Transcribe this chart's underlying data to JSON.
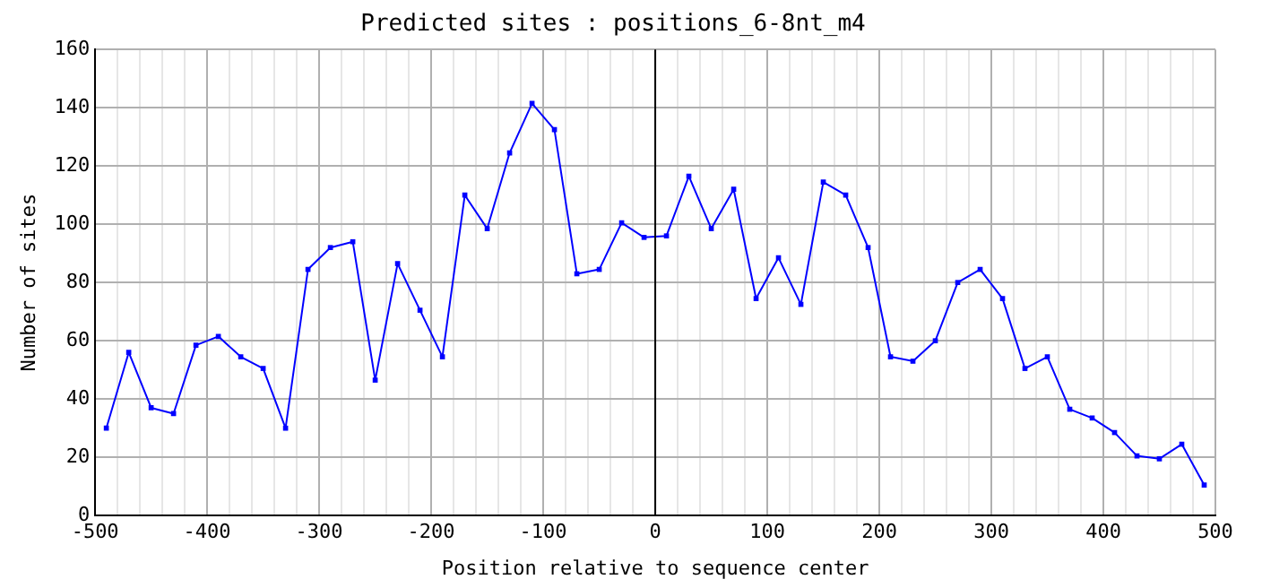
{
  "chart_data": {
    "type": "line",
    "title": "Predicted sites : positions_6-8nt_m4",
    "xlabel": "Position relative to sequence center",
    "ylabel": "Number of sites",
    "x": [
      -490,
      -470,
      -450,
      -430,
      -410,
      -390,
      -370,
      -350,
      -330,
      -310,
      -290,
      -270,
      -250,
      -230,
      -210,
      -190,
      -170,
      -150,
      -130,
      -110,
      -90,
      -70,
      -50,
      -30,
      -10,
      10,
      30,
      50,
      70,
      90,
      110,
      130,
      150,
      170,
      190,
      210,
      230,
      250,
      270,
      290,
      310,
      330,
      350,
      370,
      390,
      410,
      430,
      450,
      470,
      490
    ],
    "series": [
      {
        "color": "#0000ff",
        "values": [
          30,
          56,
          37,
          35,
          58.5,
          61.5,
          54.5,
          50.5,
          30,
          84.5,
          92,
          94,
          46.5,
          86.5,
          70.5,
          54.5,
          110,
          98.5,
          124.5,
          141.5,
          132.5,
          83,
          84.5,
          100.5,
          95.5,
          96,
          116.5,
          98.5,
          112,
          74.5,
          88.5,
          72.5,
          114.5,
          110,
          92,
          54.5,
          53,
          60,
          80,
          84.5,
          74.5,
          50.5,
          54.5,
          36.5,
          33.5,
          28.5,
          20.5,
          19.5,
          24.5,
          10.5
        ]
      }
    ],
    "xlim": [
      -500,
      500
    ],
    "xticks": [
      -500,
      {
        "value": -480,
        "label": null
      },
      {
        "value": -460,
        "label": null
      },
      {
        "value": -440,
        "label": null
      },
      {
        "value": -420,
        "label": null
      },
      -400,
      {
        "value": -380,
        "label": null
      },
      {
        "value": -360,
        "label": null
      },
      {
        "value": -340,
        "label": null
      },
      {
        "value": -320,
        "label": null
      },
      -300,
      {
        "value": -280,
        "label": null
      },
      {
        "value": -260,
        "label": null
      },
      {
        "value": -240,
        "label": null
      },
      {
        "value": -220,
        "label": null
      },
      -200,
      {
        "value": -180,
        "label": null
      },
      {
        "value": -160,
        "label": null
      },
      {
        "value": -140,
        "label": null
      },
      {
        "value": -120,
        "label": null
      },
      -100,
      {
        "value": -80,
        "label": null
      },
      {
        "value": -60,
        "label": null
      },
      {
        "value": -40,
        "label": null
      },
      {
        "value": -20,
        "label": null
      },
      0,
      {
        "value": 20,
        "label": null
      },
      {
        "value": 40,
        "label": null
      },
      {
        "value": 60,
        "label": null
      },
      {
        "value": 80,
        "label": null
      },
      100,
      {
        "value": 120,
        "label": null
      },
      {
        "value": 140,
        "label": null
      },
      {
        "value": 160,
        "label": null
      },
      {
        "value": 180,
        "label": null
      },
      200,
      {
        "value": 220,
        "label": null
      },
      {
        "value": 240,
        "label": null
      },
      {
        "value": 260,
        "label": null
      },
      {
        "value": 280,
        "label": null
      },
      300,
      {
        "value": 320,
        "label": null
      },
      {
        "value": 340,
        "label": null
      },
      {
        "value": 360,
        "label": null
      },
      {
        "value": 380,
        "label": null
      },
      400,
      {
        "value": 420,
        "label": null
      },
      {
        "value": 440,
        "label": null
      },
      {
        "value": 460,
        "label": null
      },
      {
        "value": 480,
        "label": null
      },
      500
    ],
    "ylim": [
      0,
      160
    ],
    "yticks": [
      0,
      20,
      40,
      60,
      80,
      100,
      120,
      140,
      160
    ],
    "ref_lines": [
      {
        "axis": "x",
        "value": 0,
        "color": "#000000"
      }
    ],
    "grid": true,
    "marker": "square",
    "line_style": "solid",
    "legend": false
  }
}
